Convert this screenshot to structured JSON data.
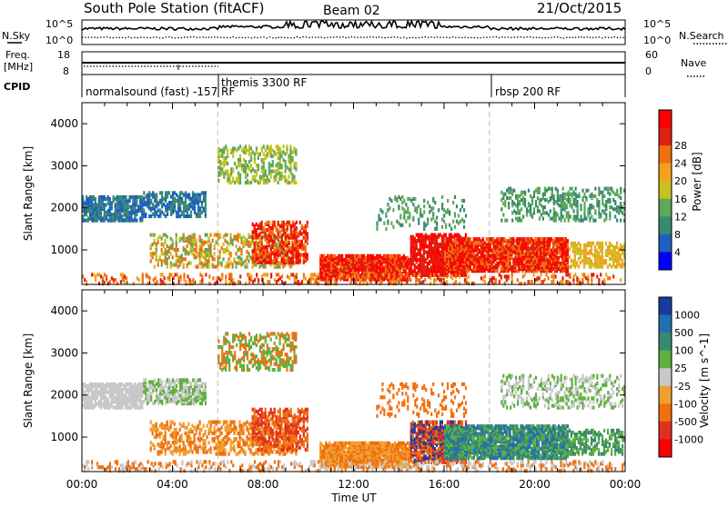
{
  "header": {
    "station": "South Pole Station (fitACF)",
    "beam": "Beam 02",
    "date": "21/Oct/2015"
  },
  "left_labels": {
    "nsky": "N.Sky",
    "freq_line1": "Freq.",
    "freq_line2": "[MHz]",
    "cpid": "CPID"
  },
  "right_labels": {
    "nsearch": "N.Search",
    "nave": "Nave"
  },
  "noise_panel": {
    "tick_top": "10^5",
    "tick_bottom": "10^0",
    "right_tick_top": "10^5",
    "right_tick_bottom": "10^0"
  },
  "freq_panel": {
    "ticks_left": [
      "18",
      "8"
    ],
    "ticks_right": [
      "60",
      "0"
    ]
  },
  "cpid_segments": [
    {
      "label": "normalsound (fast) -157 RF",
      "start_hour": 0
    },
    {
      "label": "themis 3300 RF",
      "start_hour": 6
    },
    {
      "label": "rbsp 200 RF",
      "start_hour": 18
    }
  ],
  "time_axis": {
    "label": "Time UT",
    "ticks": [
      "00:00",
      "04:00",
      "08:00",
      "12:00",
      "16:00",
      "20:00",
      "00:00"
    ]
  },
  "power_panel": {
    "ylabel": "Slant Range [km]",
    "yticks": [
      "1000",
      "2000",
      "3000",
      "4000"
    ],
    "colorbar_label": "Power [dB]",
    "colorbar_ticks": [
      "4",
      "8",
      "12",
      "16",
      "20",
      "24",
      "28"
    ],
    "colors": [
      "#0000ff",
      "#1e5fbf",
      "#3a8a70",
      "#5fa85a",
      "#c8c020",
      "#f5a020",
      "#f07010",
      "#e02010",
      "#ff0000"
    ]
  },
  "velocity_panel": {
    "ylabel": "Slant Range [km]",
    "yticks": [
      "1000",
      "2000",
      "3000",
      "4000"
    ],
    "colorbar_label": "Velocity [m s^-1]",
    "colorbar_ticks": [
      "1000",
      "500",
      "100",
      "25",
      "-25",
      "-100",
      "-500",
      "-1000"
    ],
    "colors": [
      "#1a3aa0",
      "#2070b0",
      "#3a8a70",
      "#5fb040",
      "#c8c8c8",
      "#f0a030",
      "#f07010",
      "#e03020",
      "#ff0000"
    ]
  },
  "chart_data": {
    "type": "heatmap",
    "x_range_hours": [
      0,
      24
    ],
    "y_range_km": [
      180,
      4500
    ],
    "y_grid": false,
    "cpid_boundaries_hours": [
      6,
      18
    ]
  }
}
